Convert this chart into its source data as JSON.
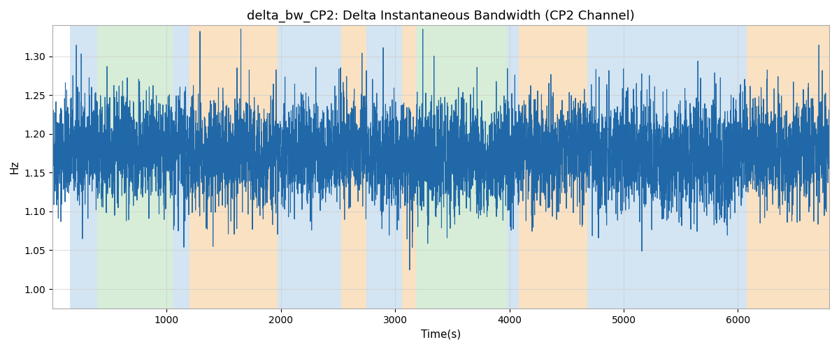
{
  "title": "delta_bw_CP2: Delta Instantaneous Bandwidth (CP2 Channel)",
  "xlabel": "Time(s)",
  "ylabel": "Hz",
  "ylim": [
    0.975,
    1.34
  ],
  "xlim": [
    0,
    6800
  ],
  "line_color": "#2068a8",
  "line_width": 0.8,
  "bg_regions": [
    {
      "xmin": 150,
      "xmax": 390,
      "color": "#b0cfe8",
      "alpha": 0.55
    },
    {
      "xmin": 390,
      "xmax": 1050,
      "color": "#a8d8a8",
      "alpha": 0.45
    },
    {
      "xmin": 1050,
      "xmax": 1200,
      "color": "#b0cfe8",
      "alpha": 0.55
    },
    {
      "xmin": 1200,
      "xmax": 1970,
      "color": "#f5c990",
      "alpha": 0.55
    },
    {
      "xmin": 1970,
      "xmax": 2530,
      "color": "#b0cfe8",
      "alpha": 0.55
    },
    {
      "xmin": 2530,
      "xmax": 2750,
      "color": "#f5c990",
      "alpha": 0.55
    },
    {
      "xmin": 2750,
      "xmax": 3060,
      "color": "#b0cfe8",
      "alpha": 0.55
    },
    {
      "xmin": 3060,
      "xmax": 3180,
      "color": "#f5c990",
      "alpha": 0.55
    },
    {
      "xmin": 3180,
      "xmax": 3980,
      "color": "#a8d8a8",
      "alpha": 0.45
    },
    {
      "xmin": 3980,
      "xmax": 4080,
      "color": "#b0cfe8",
      "alpha": 0.55
    },
    {
      "xmin": 4080,
      "xmax": 4680,
      "color": "#f5c990",
      "alpha": 0.55
    },
    {
      "xmin": 4680,
      "xmax": 5880,
      "color": "#b0cfe8",
      "alpha": 0.55
    },
    {
      "xmin": 5880,
      "xmax": 6080,
      "color": "#b0cfe8",
      "alpha": 0.55
    },
    {
      "xmin": 6080,
      "xmax": 6800,
      "color": "#f5c990",
      "alpha": 0.55
    }
  ],
  "seed": 42,
  "n_points": 6800,
  "base_mean": 1.175,
  "noise_std": 0.035,
  "spike_prob": 0.015,
  "spike_amplitude": 0.1,
  "background_color": "white",
  "grid_color": "#cccccc",
  "title_fontsize": 13,
  "label_fontsize": 11
}
